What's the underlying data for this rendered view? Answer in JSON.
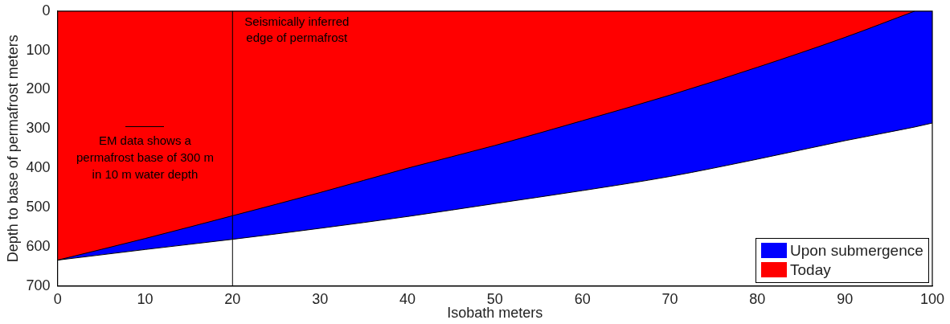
{
  "chart_data": {
    "type": "area",
    "xlabel": "Isobath meters",
    "ylabel": "Depth to base of permafrost meters",
    "x": [
      0,
      10,
      20,
      30,
      40,
      50,
      60,
      70,
      80,
      90,
      98,
      100
    ],
    "series": [
      {
        "name": "Upon submergence",
        "color": "#0000ff",
        "values": [
          634,
          607,
          581,
          553,
          523,
          490,
          457,
          421,
          377,
          330,
          295,
          285
        ]
      },
      {
        "name": "Today",
        "color": "#ff0000",
        "values": [
          634,
          579,
          521,
          462,
          400,
          342,
          279,
          214,
          143,
          67,
          0,
          null
        ]
      }
    ],
    "xlim": [
      0,
      100
    ],
    "xticks": [
      0,
      10,
      20,
      30,
      40,
      50,
      60,
      70,
      80,
      90,
      100
    ],
    "ylim": [
      700,
      0
    ],
    "yticks": [
      0,
      100,
      200,
      300,
      400,
      500,
      600,
      700
    ],
    "ref_lines": [
      {
        "axis": "x",
        "value": 20,
        "label": "Seismically inferred\nedge of permafrost",
        "color": "#000000"
      }
    ],
    "annotations": [
      "EM data shows a\npermafrost base of 300 m\nin 10 m water depth"
    ],
    "legend": "bottom right",
    "grid": false
  }
}
